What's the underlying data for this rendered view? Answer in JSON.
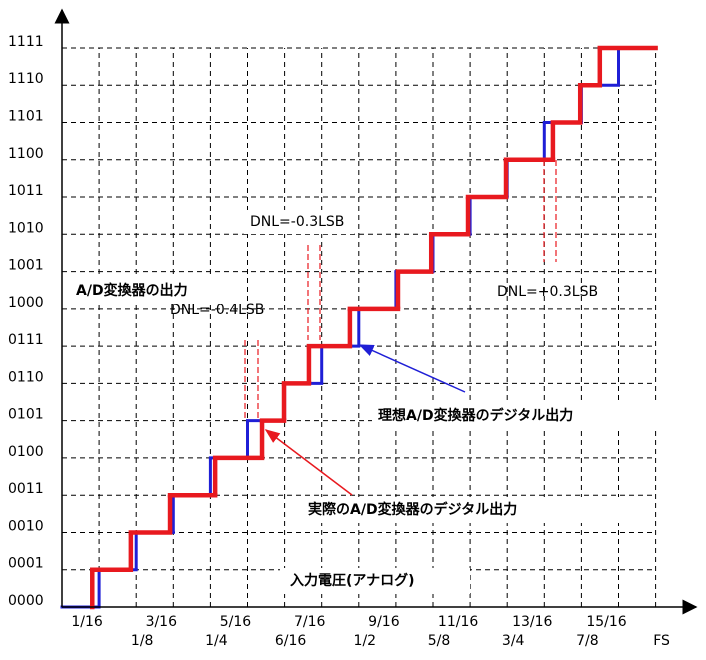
{
  "chart_data": {
    "type": "step",
    "x_label": "入力電圧(アナログ)",
    "y_label": "A/D変換器の出力",
    "xlim": [
      0,
      1.06
    ],
    "ylim": [
      0,
      15.9
    ],
    "grid": true,
    "xticks": [
      {
        "value": 0.0625,
        "label": "1/16"
      },
      {
        "value": 0.125,
        "label": "1/8"
      },
      {
        "value": 0.1875,
        "label": "3/16"
      },
      {
        "value": 0.25,
        "label": "1/4"
      },
      {
        "value": 0.3125,
        "label": "5/16"
      },
      {
        "value": 0.375,
        "label": "6/16"
      },
      {
        "value": 0.4375,
        "label": "7/16"
      },
      {
        "value": 0.5,
        "label": "1/2"
      },
      {
        "value": 0.5625,
        "label": "9/16"
      },
      {
        "value": 0.625,
        "label": "5/8"
      },
      {
        "value": 0.6875,
        "label": "11/16"
      },
      {
        "value": 0.75,
        "label": "3/4"
      },
      {
        "value": 0.8125,
        "label": "13/16"
      },
      {
        "value": 0.875,
        "label": "7/8"
      },
      {
        "value": 0.9375,
        "label": "15/16"
      },
      {
        "value": 1,
        "label": "FS"
      }
    ],
    "yticks": [
      {
        "value": 0,
        "label": "0000"
      },
      {
        "value": 1,
        "label": "0001"
      },
      {
        "value": 2,
        "label": "0010"
      },
      {
        "value": 3,
        "label": "0011"
      },
      {
        "value": 4,
        "label": "0100"
      },
      {
        "value": 5,
        "label": "0101"
      },
      {
        "value": 6,
        "label": "0110"
      },
      {
        "value": 7,
        "label": "0111"
      },
      {
        "value": 8,
        "label": "1000"
      },
      {
        "value": 9,
        "label": "1001"
      },
      {
        "value": 10,
        "label": "1010"
      },
      {
        "value": 11,
        "label": "1011"
      },
      {
        "value": 12,
        "label": "1100"
      },
      {
        "value": 13,
        "label": "1101"
      },
      {
        "value": 14,
        "label": "1110"
      },
      {
        "value": 15,
        "label": "1111"
      }
    ],
    "series": [
      {
        "name": "理想A/D変換器のデジタル出力",
        "color": "#1f1fd6",
        "x": [
          0,
          0.0625,
          0.125,
          0.1875,
          0.25,
          0.3125,
          0.375,
          0.4375,
          0.5,
          0.5625,
          0.625,
          0.6875,
          0.75,
          0.8125,
          0.875,
          0.9375
        ],
        "values": [
          0,
          1,
          2,
          3,
          4,
          5,
          6,
          7,
          8,
          9,
          10,
          11,
          12,
          13,
          14,
          15
        ]
      },
      {
        "name": "実際のA/D変換器のデジタル出力",
        "color": "#e8191f",
        "x": [
          0.051,
          0.051,
          0.116,
          0.182,
          0.258,
          0.337,
          0.374,
          0.416,
          0.485,
          0.566,
          0.622,
          0.684,
          0.748,
          0.827,
          0.873,
          0.906
        ],
        "values": [
          0,
          1,
          2,
          3,
          4,
          5,
          6,
          7,
          8,
          9,
          10,
          11,
          12,
          13,
          14,
          15
        ]
      }
    ],
    "annotations": [
      "DNL=-0.3LSB",
      "DNL=-0.4LSB",
      "DNL=+0.3LSB"
    ]
  }
}
